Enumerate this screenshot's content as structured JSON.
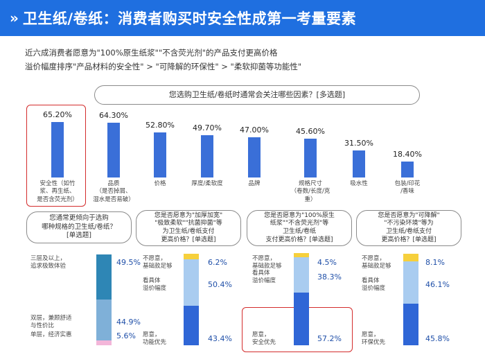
{
  "header": {
    "title": "卫生纸/卷纸：消费者购买时安全性成第一考量要素"
  },
  "subtitle": {
    "line1": "近六成消费者愿意为\"100%原生纸浆\"\"不含荧光剂\"的产品支付更高价格",
    "line2": "溢价幅度排序\"产品材料的安全性\" > \"可降解的环保性\" > \"柔软抑菌等功能性\""
  },
  "main_question": "您选购卫生纸/卷纸时通常会关注哪些因素？[多选题]",
  "chart_data": [
    {
      "type": "bar",
      "title": "您选购卫生纸/卷纸时通常会关注哪些因素？[多选题]",
      "categories": [
        "安全性（如竹浆、再生纸、是否含荧光剂）",
        "品质（是否掉屑、湿水是否易破）",
        "价格",
        "厚度/柔软度",
        "品牌",
        "规格尺寸（卷数/长度/克重）",
        "吸水性",
        "包装/印花/香味"
      ],
      "category_lines": [
        [
          "安全性（如竹",
          "浆、再生纸、",
          "是否含荧光剂）"
        ],
        [
          "品质",
          "（是否掉屑、",
          "湿水是否易破）"
        ],
        [
          "价格"
        ],
        [
          "厚度/柔软度"
        ],
        [
          "品牌"
        ],
        [
          "规格尺寸",
          "（卷数/长度/克重）"
        ],
        [
          "吸水性"
        ],
        [
          "包装/印花",
          "/香味"
        ]
      ],
      "values": [
        65.2,
        64.3,
        52.8,
        49.7,
        47.0,
        45.6,
        31.5,
        18.4
      ],
      "labels": [
        "65.20%",
        "64.30%",
        "52.80%",
        "49.70%",
        "47.00%",
        "45.60%",
        "31.50%",
        "18.40%"
      ],
      "ylim": [
        0,
        100
      ]
    },
    {
      "type": "bar",
      "stacked": true,
      "title": "您通常更倾向于选购哪种规格的卫生纸/卷纸？[单选题]",
      "title_lines": [
        "您通常更倾向于选购",
        "哪种规格的卫生纸/卷纸？",
        "[单选题]"
      ],
      "segments": [
        {
          "label": "单层，经济实惠",
          "value": 5.6,
          "text": "5.6%",
          "color": "#f3b6d9"
        },
        {
          "label": "双层，兼顾舒适与性价比",
          "label_lines": [
            "双层，兼顾舒适",
            "与性价比"
          ],
          "value": 44.9,
          "text": "44.9%",
          "color": "#7fb0d8"
        },
        {
          "label": "三层及以上，追求极致体验",
          "label_lines": [
            "三层及以上，",
            "追求极致体验"
          ],
          "value": 49.5,
          "text": "49.5%",
          "color": "#2e86b5"
        }
      ]
    },
    {
      "type": "bar",
      "stacked": true,
      "title": "您是否愿意为\"加厚加宽\"\"极致柔软\"\"抗菌抑菌\"等为卫生纸/卷纸支付更高价格？[单选题]",
      "title_lines": [
        "您是否愿意为\"加厚加宽\"",
        "\"极致柔软\"\"抗菌抑菌\"等",
        "为卫生纸/卷纸支付",
        "更高价格？[单选题]"
      ],
      "segments": [
        {
          "label": "愿意，功能优先",
          "label_lines": [
            "愿意，",
            "功能优先"
          ],
          "value": 43.4,
          "text": "43.4%",
          "color": "#2f66d6"
        },
        {
          "label": "看具体溢价幅度",
          "label_lines": [
            "看具体",
            "溢价幅度"
          ],
          "value": 50.4,
          "text": "50.4%",
          "color": "#a9ccf0"
        },
        {
          "label": "不愿意，基础款足够",
          "label_lines": [
            "不愿意，",
            "基础款足够"
          ],
          "value": 6.2,
          "text": "6.2%",
          "color": "#f6d03c"
        }
      ]
    },
    {
      "type": "bar",
      "stacked": true,
      "title": "您是否愿意为\"100%原生纸浆\"\"不含荧光剂\"等卫生纸/卷纸支付更高价格？[单选题]",
      "title_lines": [
        "您是否愿意为\"100%原生",
        "纸浆\"\"不含荧光剂\"等",
        "卫生纸/卷纸",
        "支付更高价格？[单选题]"
      ],
      "segments": [
        {
          "label": "愿意，安全优先",
          "label_lines": [
            "愿意，",
            "安全优先"
          ],
          "value": 57.2,
          "text": "57.2%",
          "color": "#2f66d6"
        },
        {
          "label": "看具体溢价幅度",
          "label_lines": [
            "看具体",
            "溢价幅度"
          ],
          "value": 38.3,
          "text": "38.3%",
          "color": "#a9ccf0"
        },
        {
          "label": "不愿意，基础款足够",
          "label_lines": [
            "不愿意，",
            "基础款足够"
          ],
          "value": 4.5,
          "text": "4.5%",
          "color": "#f6d03c"
        }
      ]
    },
    {
      "type": "bar",
      "stacked": true,
      "title": "您是否愿意为\"可降解\"\"不污染环境\"等为卫生纸/卷纸支付更高价格？[单选题]",
      "title_lines": [
        "您是否愿意为\"可降解\"",
        "\"不污染环境\"等为",
        "卫生纸/卷纸支付",
        "更高价格？[单选题]"
      ],
      "segments": [
        {
          "label": "愿意，环保优先",
          "label_lines": [
            "愿意，",
            "环保优先"
          ],
          "value": 45.8,
          "text": "45.8%",
          "color": "#2f66d6"
        },
        {
          "label": "看具体溢价幅度",
          "label_lines": [
            "看具体",
            "溢价幅度"
          ],
          "value": 46.1,
          "text": "46.1%",
          "color": "#a9ccf0"
        },
        {
          "label": "不愿意，基础款足够",
          "label_lines": [
            "不愿意，",
            "基础款足够"
          ],
          "value": 8.1,
          "text": "8.1%",
          "color": "#f6d03c"
        }
      ]
    }
  ]
}
